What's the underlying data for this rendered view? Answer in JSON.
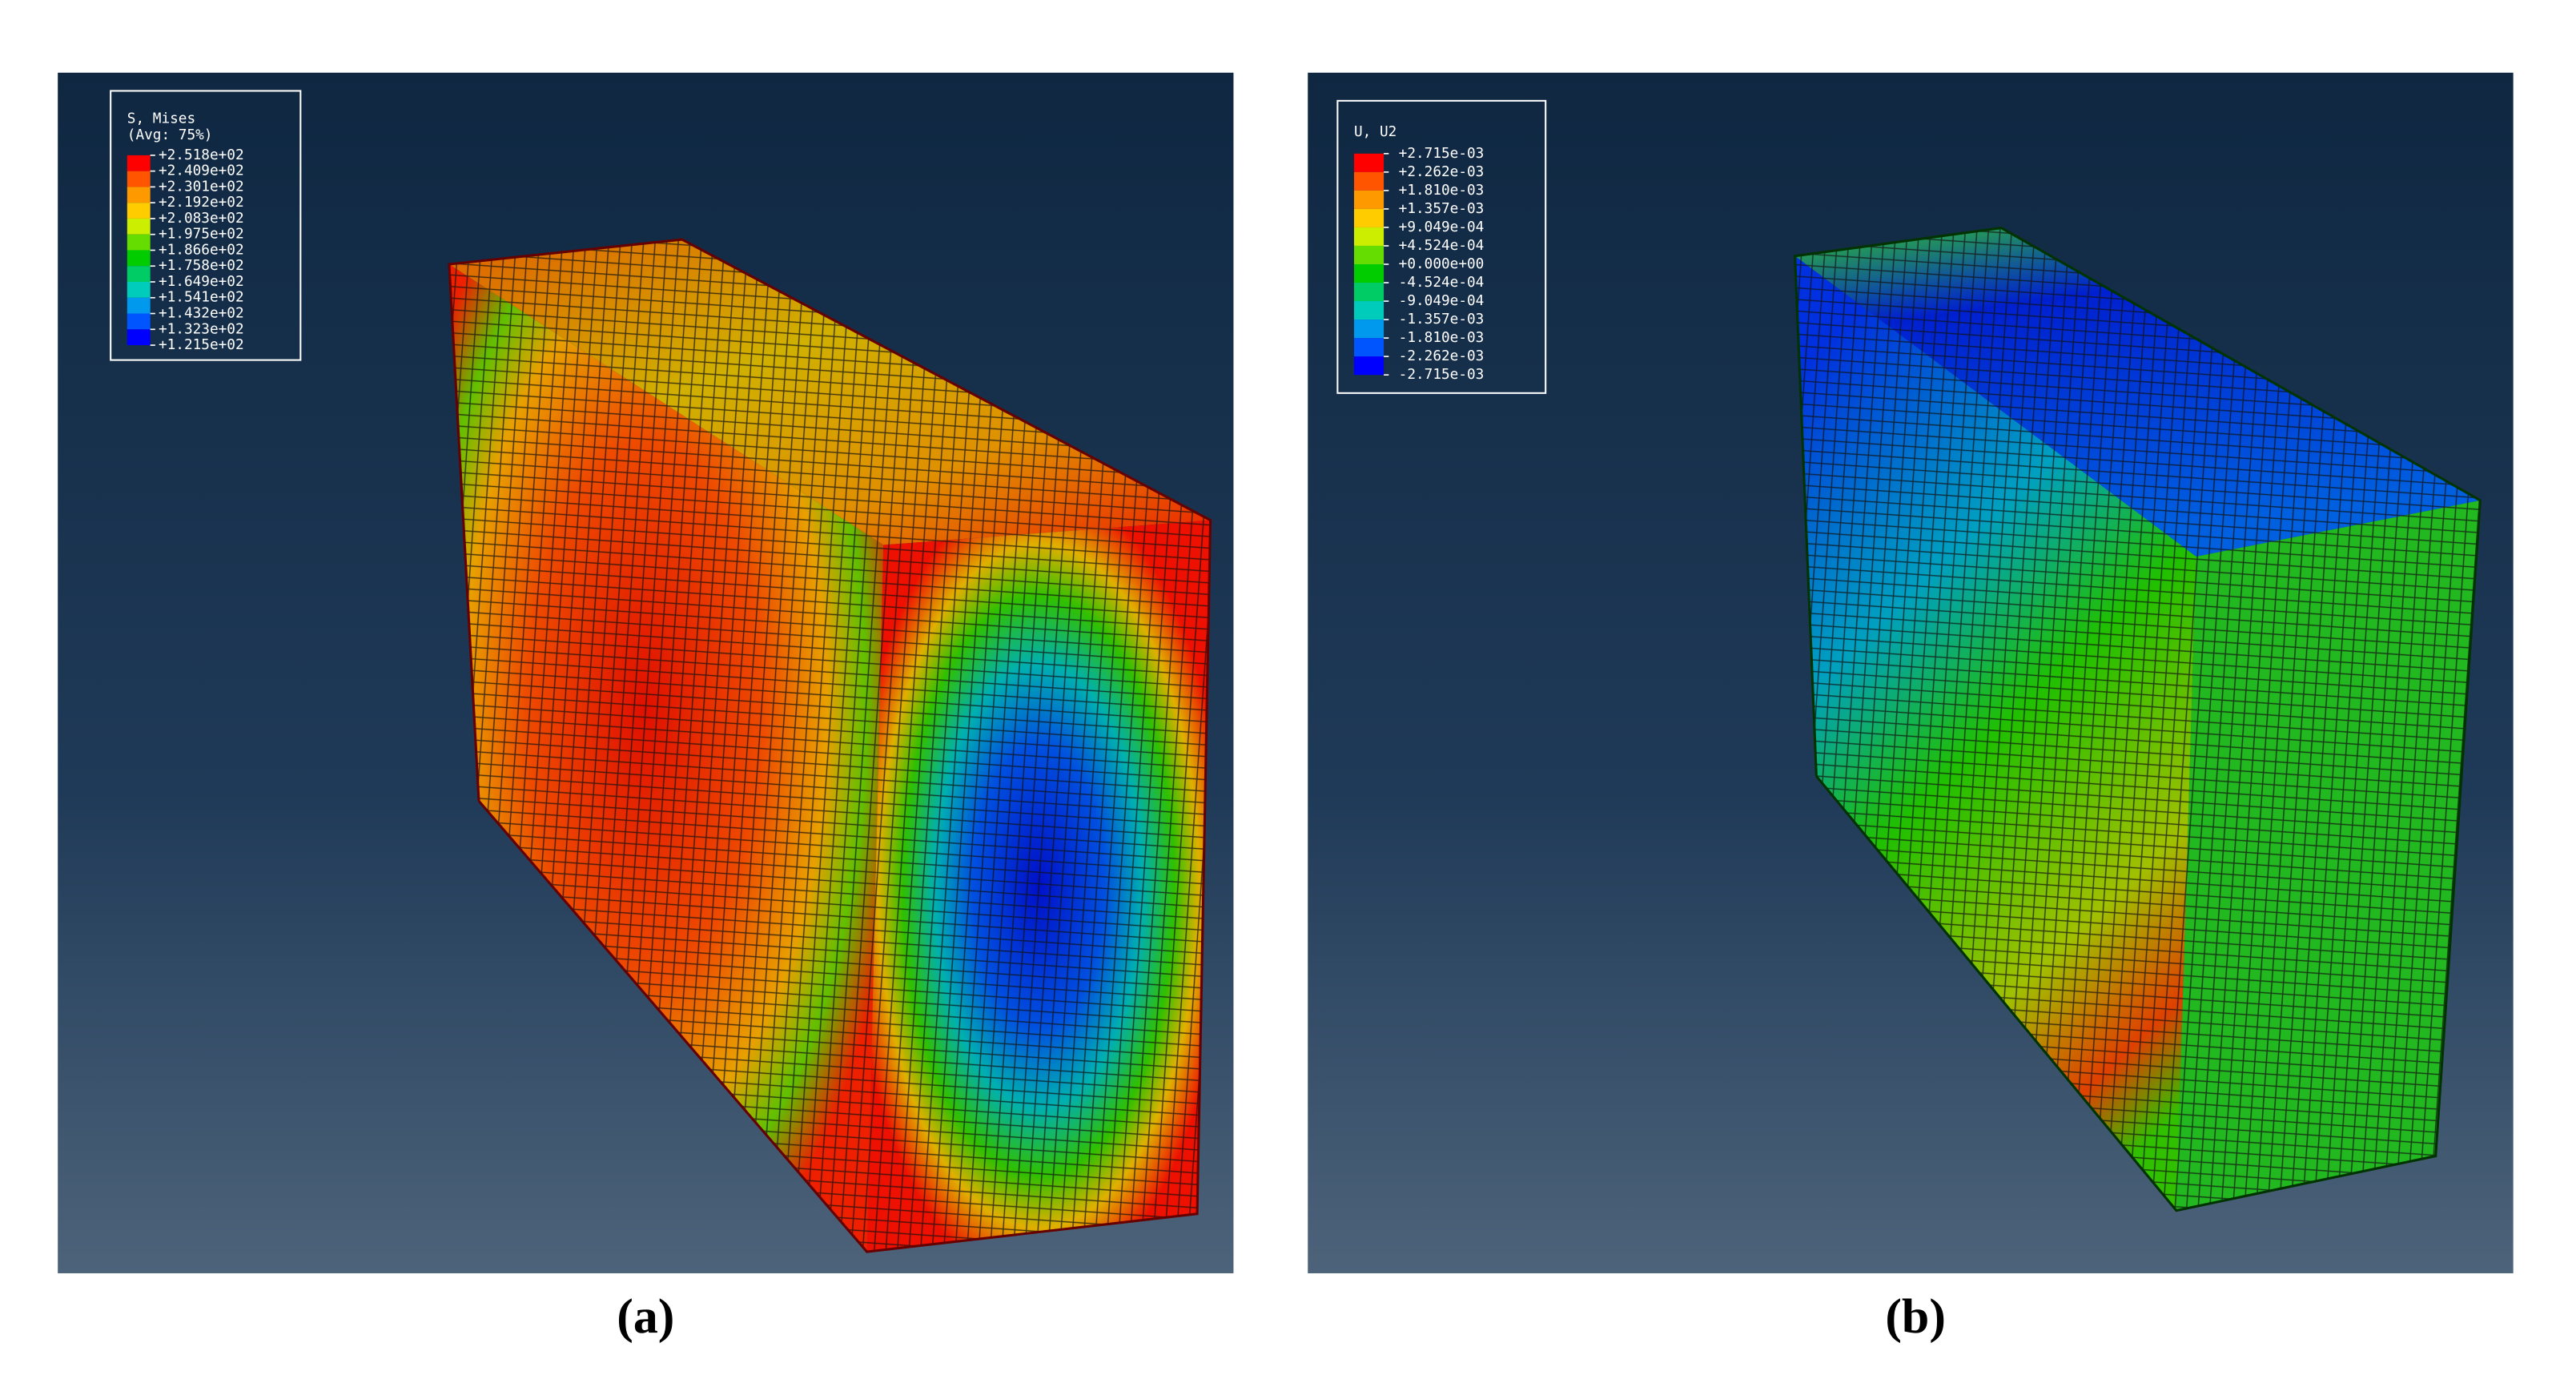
{
  "panels": [
    {
      "legend": {
        "title": "S, Mises",
        "subtitle": "(Avg: 75%)",
        "labels": [
          "+2.518e+02",
          "+2.409e+02",
          "+2.301e+02",
          "+2.192e+02",
          "+2.083e+02",
          "+1.975e+02",
          "+1.866e+02",
          "+1.758e+02",
          "+1.649e+02",
          "+1.541e+02",
          "+1.432e+02",
          "+1.323e+02",
          "+1.215e+02"
        ]
      },
      "caption": "(a)"
    },
    {
      "legend": {
        "title": "U, U2",
        "labels": [
          "+2.715e-03",
          "+2.262e-03",
          "+1.810e-03",
          "+1.357e-03",
          "+9.049e-04",
          "+4.524e-04",
          "+0.000e+00",
          "-4.524e-04",
          "-9.049e-04",
          "-1.357e-03",
          "-1.810e-03",
          "-2.262e-03",
          "-2.715e-03"
        ]
      },
      "caption": "(b)"
    }
  ]
}
